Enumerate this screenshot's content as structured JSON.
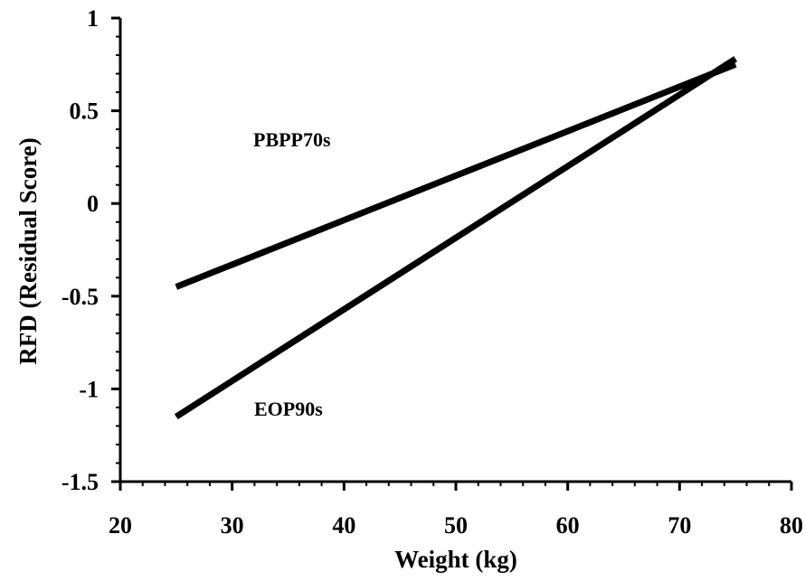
{
  "chart_data": {
    "type": "line",
    "title": "",
    "xlabel": "Weight (kg)",
    "ylabel": "RFD (Residual Score)",
    "xlim": [
      20,
      80
    ],
    "ylim": [
      -1.5,
      1
    ],
    "xticks": [
      20,
      30,
      40,
      50,
      60,
      70,
      80
    ],
    "yticks": [
      -1.5,
      -1,
      -0.5,
      0,
      0.5,
      1
    ],
    "ytick_labels": [
      "-1.5",
      "-1",
      "-0.5",
      "0",
      "0.5",
      "1"
    ],
    "xtick_labels": [
      "20",
      "30",
      "40",
      "50",
      "60",
      "70",
      "80"
    ],
    "grid": false,
    "legend": "none (series labeled inline)",
    "series": [
      {
        "name": "PBPP70s",
        "x": [
          25,
          75
        ],
        "y": [
          -0.45,
          0.75
        ],
        "color": "#000000"
      },
      {
        "name": "EOP90s",
        "x": [
          25,
          75
        ],
        "y": [
          -1.15,
          0.78
        ],
        "color": "#000000"
      }
    ]
  }
}
